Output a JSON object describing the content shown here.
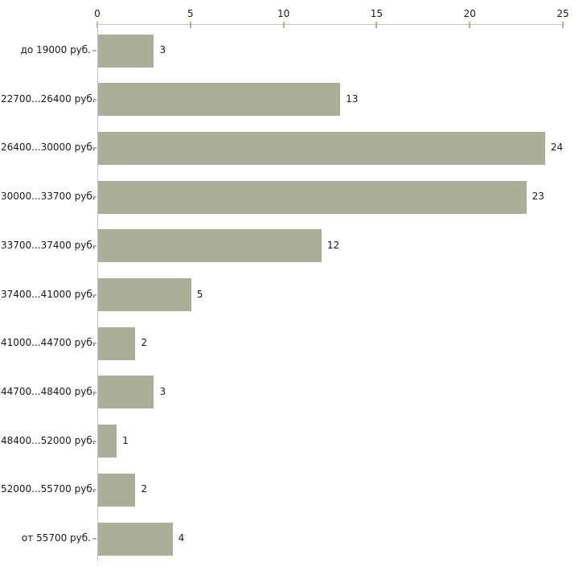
{
  "chart_data": {
    "type": "bar",
    "orientation": "horizontal",
    "title": "",
    "xlabel": "",
    "ylabel": "",
    "categories": [
      "до 19000 руб.",
      "22700...26400 руб.",
      "26400...30000 руб.",
      "30000...33700 руб.",
      "33700...37400 руб.",
      "37400...41000 руб.",
      "41000...44700 руб.",
      "44700...48400 руб.",
      "48400...52000 руб.",
      "52000...55700 руб.",
      "от 55700 руб."
    ],
    "values": [
      3,
      13,
      24,
      23,
      12,
      5,
      2,
      3,
      1,
      2,
      4
    ],
    "xlim": [
      0,
      25
    ],
    "x_ticks": [
      0,
      5,
      10,
      15,
      20,
      25
    ],
    "axis_position": "top",
    "grid": false,
    "legend": false,
    "value_labels": true,
    "colors": {
      "bar_fill": "#ACAF97",
      "axis_line": "#C4C4C4",
      "tick_mark": "#B6B67E",
      "category_tick": "#B4B49A",
      "text": "#1A1A1A",
      "background": "#FFFFFF"
    }
  }
}
